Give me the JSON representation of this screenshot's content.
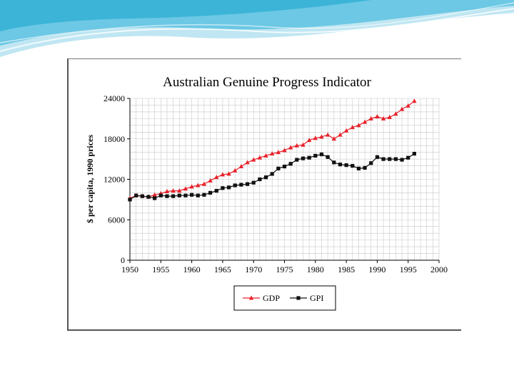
{
  "theme": {
    "accent": "#3cb4d8",
    "light": "#bfe6f2"
  },
  "chart_data": {
    "type": "line",
    "title": "Australian Genuine Progress Indicator",
    "xlabel": "",
    "ylabel": "$ per capita, 1990 prices",
    "xlim": [
      1950,
      2000
    ],
    "ylim": [
      0,
      24000
    ],
    "xticks": [
      1950,
      1955,
      1960,
      1965,
      1970,
      1975,
      1980,
      1985,
      1990,
      1995,
      2000
    ],
    "yticks": [
      0,
      6000,
      12000,
      18000,
      24000
    ],
    "grid": true,
    "legend_position": "bottom-center",
    "x": [
      1950,
      1951,
      1952,
      1953,
      1954,
      1955,
      1956,
      1957,
      1958,
      1959,
      1960,
      1961,
      1962,
      1963,
      1964,
      1965,
      1966,
      1967,
      1968,
      1969,
      1970,
      1971,
      1972,
      1973,
      1974,
      1975,
      1976,
      1977,
      1978,
      1979,
      1980,
      1981,
      1982,
      1983,
      1984,
      1985,
      1986,
      1987,
      1988,
      1989,
      1990,
      1991,
      1992,
      1993,
      1994,
      1995,
      1996
    ],
    "series": [
      {
        "name": "GDP",
        "color": "#e8212a",
        "marker": "triangle",
        "values": [
          9200,
          9600,
          9500,
          9400,
          9700,
          9900,
          10200,
          10300,
          10300,
          10600,
          10900,
          11100,
          11300,
          11800,
          12300,
          12700,
          12800,
          13300,
          13900,
          14500,
          14900,
          15200,
          15500,
          15800,
          16000,
          16300,
          16700,
          17000,
          17100,
          17800,
          18100,
          18300,
          18600,
          18000,
          18600,
          19200,
          19700,
          20000,
          20500,
          21000,
          21300,
          21000,
          21200,
          21700,
          22400,
          22900,
          23600
        ],
        "values_note": ""
      },
      {
        "name": "GPI",
        "color": "#111111",
        "marker": "square",
        "values": [
          9000,
          9600,
          9500,
          9400,
          9200,
          9600,
          9500,
          9500,
          9600,
          9600,
          9700,
          9600,
          9700,
          10000,
          10300,
          10700,
          10800,
          11100,
          11200,
          11300,
          11500,
          12000,
          12300,
          12800,
          13600,
          13900,
          14300,
          14900,
          15100,
          15200,
          15500,
          15700,
          15300,
          14500,
          14200,
          14100,
          14000,
          13600,
          13700,
          14400,
          15300,
          15000,
          15000,
          15000,
          14900,
          15200,
          15800
        ],
        "values_note": ""
      }
    ]
  }
}
